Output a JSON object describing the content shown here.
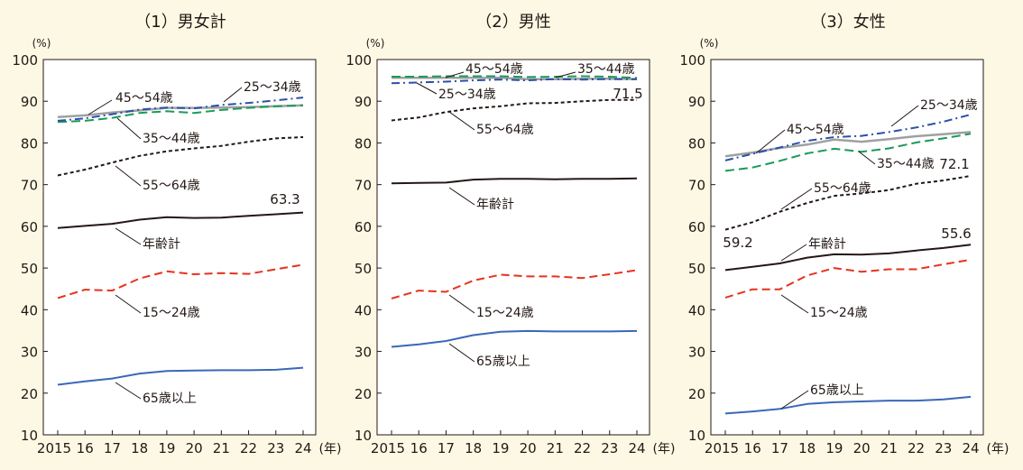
{
  "chart_data": [
    {
      "type": "line",
      "title": "（1）男女計",
      "ylabel": "(%)",
      "xunit": "(年)",
      "ylim": [
        10,
        100
      ],
      "yticks": [
        "10",
        "20",
        "30",
        "40",
        "50",
        "60",
        "70",
        "80",
        "90",
        "100"
      ],
      "x": [
        2015,
        2016,
        2017,
        2018,
        2019,
        2020,
        2021,
        2022,
        2023,
        2024
      ],
      "xticklabels": [
        "2015",
        "16",
        "17",
        "18",
        "19",
        "20",
        "21",
        "22",
        "23",
        "24"
      ],
      "end_label": "63.3",
      "series": [
        {
          "name": "15～24歳",
          "values": [
            42.8,
            44.8,
            44.6,
            47.5,
            49.2,
            48.5,
            48.8,
            48.6,
            49.7,
            50.8
          ]
        },
        {
          "name": "25～34歳",
          "values": [
            85.3,
            85.9,
            86.9,
            88.0,
            88.5,
            88.3,
            89.1,
            89.6,
            90.2,
            90.9
          ]
        },
        {
          "name": "35～44歳",
          "values": [
            85.0,
            85.3,
            86.0,
            87.2,
            87.6,
            87.2,
            87.9,
            88.4,
            88.8,
            89.0
          ]
        },
        {
          "name": "45～54歳",
          "values": [
            86.2,
            86.6,
            87.3,
            87.8,
            88.4,
            88.4,
            88.5,
            88.6,
            88.8,
            89.0
          ]
        },
        {
          "name": "55～64歳",
          "values": [
            72.2,
            73.6,
            75.3,
            76.9,
            78.0,
            78.7,
            79.3,
            80.3,
            81.1,
            81.4
          ]
        },
        {
          "name": "65歳以上",
          "values": [
            22.0,
            22.8,
            23.5,
            24.7,
            25.3,
            25.4,
            25.5,
            25.5,
            25.6,
            26.1
          ]
        },
        {
          "name": "年齢計",
          "values": [
            59.6,
            60.1,
            60.6,
            61.6,
            62.2,
            62.0,
            62.1,
            62.5,
            62.9,
            63.3
          ]
        }
      ],
      "labels": [
        "45～54歳",
        "25～34歳",
        "35～44歳",
        "55～64歳",
        "年齢計",
        "15～24歳",
        "65歳以上"
      ]
    },
    {
      "type": "line",
      "title": "（2）男性",
      "ylabel": "(%)",
      "xunit": "(年)",
      "ylim": [
        10,
        100
      ],
      "yticks": [
        "10",
        "20",
        "30",
        "40",
        "50",
        "60",
        "70",
        "80",
        "90",
        "100"
      ],
      "x": [
        2015,
        2016,
        2017,
        2018,
        2019,
        2020,
        2021,
        2022,
        2023,
        2024
      ],
      "xticklabels": [
        "2015",
        "16",
        "17",
        "18",
        "19",
        "20",
        "21",
        "22",
        "23",
        "24"
      ],
      "end_label": "71.5",
      "series": [
        {
          "name": "15～24歳",
          "values": [
            42.7,
            44.6,
            44.3,
            47.0,
            48.4,
            48.0,
            48.0,
            47.6,
            48.5,
            49.5
          ]
        },
        {
          "name": "25～34歳",
          "values": [
            94.3,
            94.5,
            94.7,
            95.0,
            95.2,
            95.0,
            95.3,
            95.2,
            95.3,
            95.3
          ]
        },
        {
          "name": "35～44歳",
          "values": [
            95.9,
            95.9,
            96.0,
            96.0,
            96.0,
            95.8,
            95.9,
            96.0,
            95.9,
            95.6
          ]
        },
        {
          "name": "45～54歳",
          "values": [
            95.6,
            95.6,
            95.6,
            95.6,
            95.6,
            95.3,
            95.3,
            95.4,
            95.4,
            95.3
          ]
        },
        {
          "name": "55～64歳",
          "values": [
            85.4,
            86.1,
            87.4,
            88.3,
            88.8,
            89.5,
            89.6,
            90.0,
            90.3,
            90.3
          ]
        },
        {
          "name": "65歳以上",
          "values": [
            31.1,
            31.7,
            32.5,
            33.9,
            34.7,
            34.9,
            34.8,
            34.8,
            34.8,
            34.9
          ]
        },
        {
          "name": "年齢計",
          "values": [
            70.3,
            70.4,
            70.5,
            71.2,
            71.4,
            71.4,
            71.3,
            71.4,
            71.4,
            71.5
          ]
        }
      ],
      "labels": [
        "45～54歳",
        "35～44歳",
        "25～34歳",
        "55～64歳",
        "年齢計",
        "15～24歳",
        "65歳以上"
      ]
    },
    {
      "type": "line",
      "title": "（3）女性",
      "ylabel": "(%)",
      "xunit": "(年)",
      "ylim": [
        10,
        100
      ],
      "yticks": [
        "10",
        "20",
        "30",
        "40",
        "50",
        "60",
        "70",
        "80",
        "90",
        "100"
      ],
      "x": [
        2015,
        2016,
        2017,
        2018,
        2019,
        2020,
        2021,
        2022,
        2023,
        2024
      ],
      "xticklabels": [
        "2015",
        "16",
        "17",
        "18",
        "19",
        "20",
        "21",
        "22",
        "23",
        "24"
      ],
      "start_label": "59.2",
      "end_labels": [
        "72.1",
        "55.6"
      ],
      "series": [
        {
          "name": "15～24歳",
          "values": [
            42.9,
            44.9,
            44.9,
            48.2,
            50.0,
            49.1,
            49.7,
            49.7,
            50.9,
            52.0
          ]
        },
        {
          "name": "25～34歳",
          "values": [
            75.8,
            77.4,
            78.9,
            80.5,
            81.4,
            81.7,
            82.6,
            83.7,
            85.1,
            86.8
          ]
        },
        {
          "name": "35～44歳",
          "values": [
            73.3,
            74.1,
            75.7,
            77.5,
            78.6,
            77.9,
            78.7,
            80.1,
            81.1,
            82.2
          ]
        },
        {
          "name": "45～54歳",
          "values": [
            76.8,
            77.7,
            78.8,
            79.6,
            80.8,
            80.3,
            80.9,
            81.6,
            82.1,
            82.6
          ]
        },
        {
          "name": "55～64歳",
          "values": [
            59.2,
            61.0,
            63.5,
            65.6,
            67.3,
            67.9,
            68.7,
            70.2,
            71.0,
            72.1
          ]
        },
        {
          "name": "65歳以上",
          "values": [
            15.1,
            15.6,
            16.2,
            17.4,
            17.8,
            18.0,
            18.2,
            18.2,
            18.5,
            19.1
          ]
        },
        {
          "name": "年齢計",
          "values": [
            49.5,
            50.3,
            51.1,
            52.5,
            53.3,
            53.2,
            53.5,
            54.2,
            54.8,
            55.6
          ]
        }
      ],
      "labels": [
        "45～54歳",
        "25～34歳",
        "35～44歳",
        "55～64歳",
        "年齢計",
        "15～24歳",
        "65歳以上"
      ]
    }
  ]
}
